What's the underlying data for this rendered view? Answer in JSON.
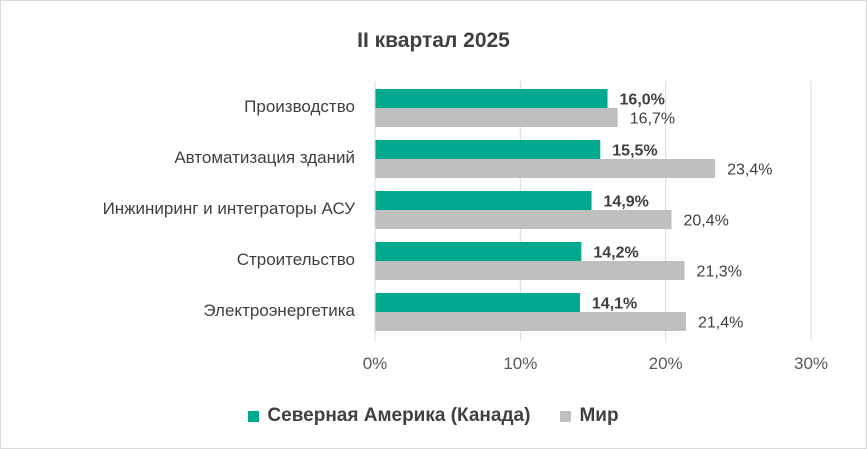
{
  "chart_data": {
    "type": "bar",
    "orientation": "horizontal",
    "title": "II квартал 2025",
    "categories": [
      "Производство",
      "Автоматизация зданий",
      "Инжиниринг и интеграторы АСУ",
      "Строительство",
      "Электроэнергетика"
    ],
    "series": [
      {
        "name": "Северная Америка (Канада)",
        "color": "#00A88E",
        "values": [
          16.0,
          15.5,
          14.9,
          14.2,
          14.1
        ],
        "labels": [
          "16,0%",
          "15,5%",
          "14,9%",
          "14,2%",
          "14,1%"
        ],
        "label_bold": true
      },
      {
        "name": "Мир",
        "color": "#BFBFBF",
        "values": [
          16.7,
          23.4,
          20.4,
          21.3,
          21.4
        ],
        "labels": [
          "16,7%",
          "23,4%",
          "20,4%",
          "21,3%",
          "21,4%"
        ],
        "label_bold": false
      }
    ],
    "xlim": [
      0,
      30
    ],
    "x_ticks": [
      0,
      10,
      20,
      30
    ],
    "x_tick_labels": [
      "0%",
      "10%",
      "20%",
      "30%"
    ],
    "grid": "vertical",
    "legend_position": "bottom"
  }
}
